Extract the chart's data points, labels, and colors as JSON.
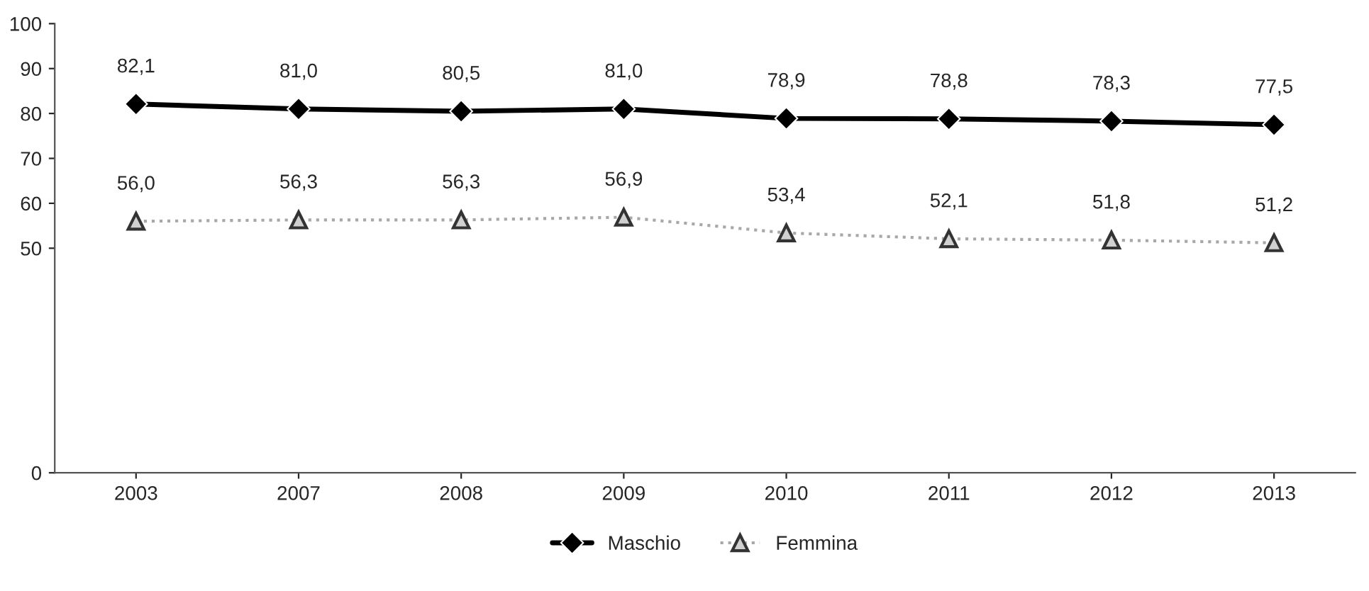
{
  "chart_data": {
    "type": "line",
    "categories": [
      "2003",
      "2007",
      "2008",
      "2009",
      "2010",
      "2011",
      "2012",
      "2013"
    ],
    "series": [
      {
        "name": "Maschio",
        "color": "#000000",
        "marker": "diamond",
        "line_style": "solid",
        "values": [
          82.1,
          81.0,
          80.5,
          81.0,
          78.9,
          78.8,
          78.3,
          77.5
        ],
        "value_labels": [
          "82,1",
          "81,0",
          "80,5",
          "81,0",
          "78,9",
          "78,8",
          "78,3",
          "77,5"
        ]
      },
      {
        "name": "Femmina",
        "color": "#a8a8a8",
        "marker": "triangle",
        "line_style": "dotted",
        "values": [
          56.0,
          56.3,
          56.3,
          56.9,
          53.4,
          52.1,
          51.8,
          51.2
        ],
        "value_labels": [
          "56,0",
          "56,3",
          "56,3",
          "56,9",
          "53,4",
          "52,1",
          "51,8",
          "51,2"
        ]
      }
    ],
    "ylim": [
      0,
      100
    ],
    "yticks": [
      0,
      50,
      60,
      70,
      80,
      90,
      100
    ],
    "grid": false,
    "legend": "bottom"
  }
}
